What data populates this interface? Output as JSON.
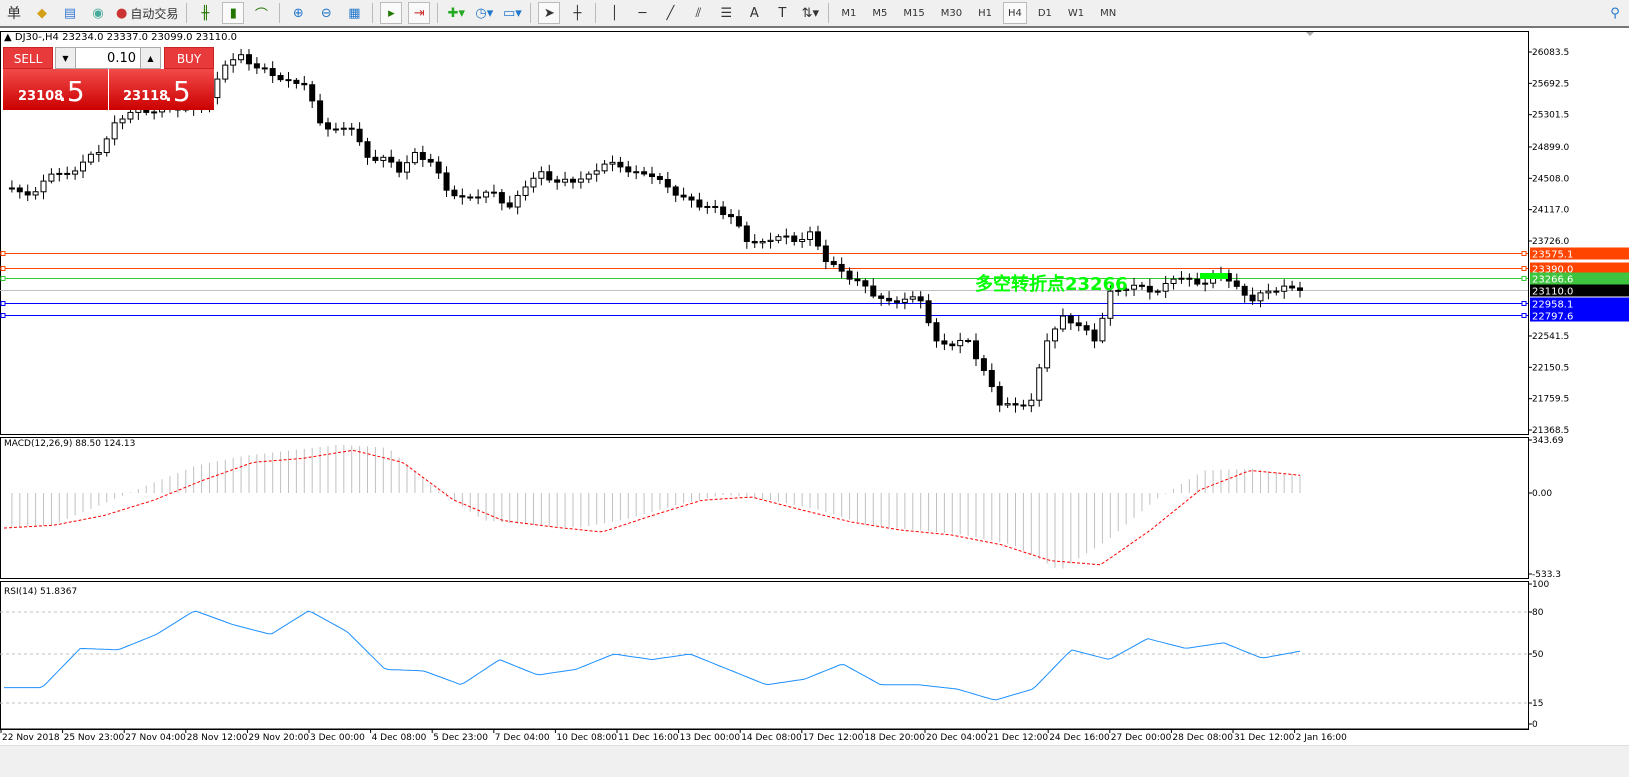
{
  "toolbar": {
    "menu_label": "单",
    "autotrade_label": "自动交易",
    "icons": [
      "book-icon",
      "folder-icon",
      "signal-icon",
      "bar-chart-icon",
      "candle-chart-icon",
      "line-chart-icon",
      "zoom-in-icon",
      "zoom-out-icon",
      "tile-icon",
      "autoscroll-icon",
      "chart-shift-icon",
      "indicators-icon",
      "clock-icon",
      "templates-icon",
      "cursor-icon",
      "crosshair-icon",
      "vertical-line-icon",
      "horizontal-line-icon",
      "trendline-icon",
      "channel-icon",
      "fibonacci-icon",
      "text-icon",
      "label-icon",
      "arrows-icon",
      "search-icon"
    ],
    "timeframes": [
      "M1",
      "M5",
      "M15",
      "M30",
      "H1",
      "H4",
      "D1",
      "W1",
      "MN"
    ],
    "active_timeframe": "H4"
  },
  "chart": {
    "header": "DJ30-,H4  23234.0 23337.0 23099.0 23110.0",
    "annotation": "多空转折点23266",
    "annotation_color": "#00ff00",
    "price_ticks": [
      "26083.5",
      "25692.5",
      "25301.5",
      "24899.0",
      "24508.0",
      "24117.0",
      "23726.0",
      "22541.5",
      "22150.5",
      "21759.5",
      "21368.5"
    ],
    "levels": [
      {
        "price": "23575.1",
        "color": "#ff4500"
      },
      {
        "price": "23390.0",
        "color": "#ff4500"
      },
      {
        "price": "23266.6",
        "color": "#32cd32"
      },
      {
        "price": "23110.0",
        "color": "#000000",
        "line": "#c0c0c0"
      },
      {
        "price": "22958.1",
        "color": "#0000ff"
      },
      {
        "price": "22797.6",
        "color": "#0000ff"
      }
    ],
    "time_labels": [
      "22 Nov 2018",
      "25 Nov 23:00",
      "27 Nov 04:00",
      "28 Nov 12:00",
      "29 Nov 20:00",
      "3 Dec 00:00",
      "4 Dec 08:00",
      "5 Dec 23:00",
      "7 Dec 04:00",
      "10 Dec 08:00",
      "11 Dec 16:00",
      "13 Dec 00:00",
      "14 Dec 08:00",
      "17 Dec 12:00",
      "18 Dec 20:00",
      "20 Dec 04:00",
      "21 Dec 12:00",
      "24 Dec 16:00",
      "27 Dec 00:00",
      "28 Dec 08:00",
      "31 Dec 12:00",
      "2 Jan 16:00"
    ]
  },
  "trade": {
    "sell_label": "SELL",
    "buy_label": "BUY",
    "lot": "0.10",
    "sell_main": "23108",
    "sell_pips": ".5",
    "buy_main": "23118",
    "buy_pips": ".5"
  },
  "macd": {
    "label": "MACD(12,26,9) 88.50 124.13",
    "ticks": [
      "343.69",
      "0.00",
      "-533.3"
    ]
  },
  "rsi": {
    "label": "RSI(14) 51.8367",
    "ticks": [
      "100",
      "80",
      "50",
      "15",
      "0"
    ]
  },
  "chart_data": {
    "type": "candlestick",
    "symbol": "DJ30-",
    "timeframe": "H4",
    "ylim": [
      21368.5,
      26083.5
    ],
    "closes": [
      24375,
      24340,
      24340,
      24560,
      24560,
      24710,
      24830,
      25200,
      25330,
      25330,
      25410,
      25360,
      25380,
      25515,
      25920,
      26050,
      25885,
      25790,
      25730,
      25675,
      25200,
      25120,
      25120,
      24770,
      24770,
      24585,
      24830,
      24710,
      24360,
      24275,
      24275,
      24330,
      24150,
      24400,
      24590,
      24460,
      24460,
      24560,
      24685,
      24650,
      24590,
      24530,
      24400,
      24275,
      24150,
      24150,
      24030,
      23720,
      23720,
      23780,
      23720,
      23840,
      23470,
      23350,
      23230,
      23040,
      22980,
      23000,
      22980,
      22480,
      22420,
      22480,
      22111,
      21680,
      21680,
      21740,
      22480,
      22790,
      22670,
      22480,
      23100,
      23125,
      23160,
      23100,
      23250,
      23250,
      23200,
      23320,
      23160,
      22980,
      23100,
      23163,
      23110
    ],
    "macd_hist": [
      -215,
      -200,
      -75,
      50,
      170,
      230,
      265,
      300,
      280,
      20,
      -170,
      -200,
      -215,
      -160,
      -75,
      -10,
      -45,
      -105,
      -200,
      -230,
      -260,
      -320,
      -480,
      -290,
      -40,
      140,
      150,
      110
    ],
    "macd_signal": [
      -217,
      -200,
      -140,
      -45,
      80,
      190,
      215,
      265,
      190,
      -40,
      -170,
      -210,
      -242,
      -140,
      -45,
      -25,
      -105,
      -180,
      -230,
      -260,
      -320,
      -420,
      -445,
      -230,
      20,
      140,
      110
    ],
    "rsi": [
      26,
      26,
      54,
      53,
      64,
      81,
      71,
      64,
      81,
      66,
      39,
      38,
      28,
      46,
      35,
      39,
      50,
      46,
      50,
      39,
      28,
      32,
      43,
      28,
      28,
      25,
      17,
      25,
      53,
      46,
      61,
      54,
      58,
      47,
      52
    ],
    "rsi_levels": [
      80,
      50,
      15
    ]
  }
}
